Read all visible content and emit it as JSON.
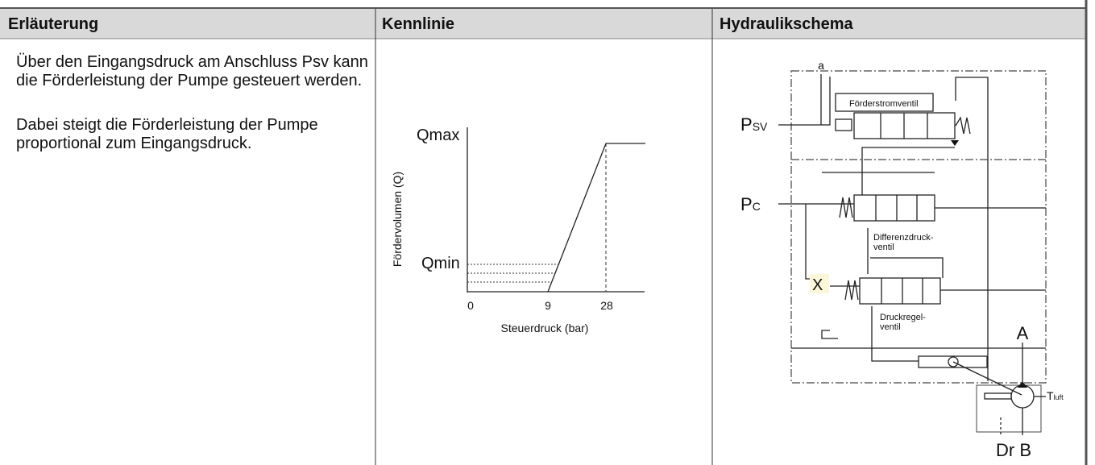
{
  "table": {
    "headers": [
      "Erläuterung",
      "Kennlinie",
      "Hydraulikschema"
    ],
    "explanation": [
      "Über den Eingangsdruck am Anschluss Psv kann die Förderleistung der Pumpe gesteuert werden.",
      "Dabei steigt die Förderleistung der Pumpe proportional zum Eingangsdruck."
    ],
    "kennlinie": {
      "y_axis_label": "Fördervolumen (Q)",
      "x_axis_label": "Steuerdruck (bar)",
      "y_labels": [
        "Qmax",
        "Qmin"
      ],
      "x_labels": [
        "0",
        "9",
        "28"
      ]
    },
    "schema": {
      "port_a_small": "a",
      "valve_1": "Förderstromventil",
      "port_psv": {
        "main": "P",
        "sub": "SV"
      },
      "port_pc": {
        "main": "P",
        "sub": "C"
      },
      "valve_2": [
        "Differenzdruck-",
        "ventil"
      ],
      "port_x": "X",
      "valve_3": [
        "Druckregel-",
        "ventil"
      ],
      "port_a": "A",
      "port_t": {
        "main": "T",
        "sub": "luft"
      },
      "port_dr_b": "Dr B"
    }
  }
}
